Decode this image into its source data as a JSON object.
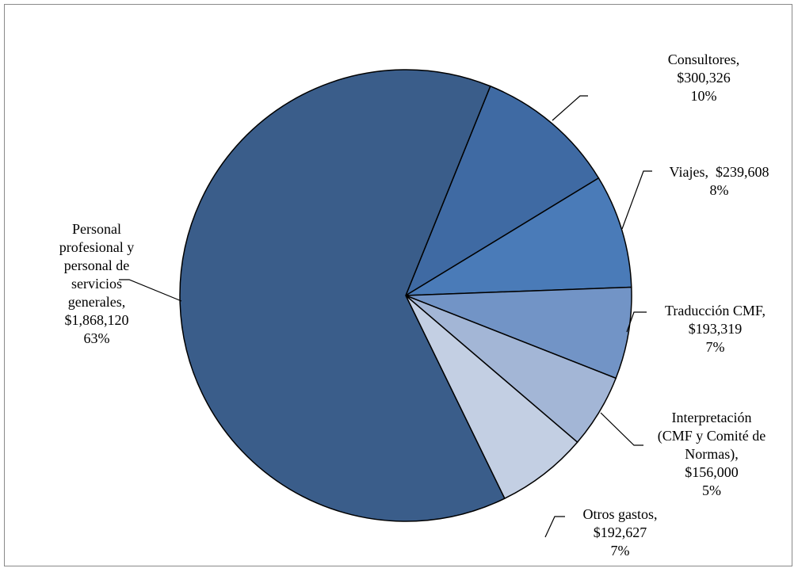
{
  "chart_data": {
    "type": "pie",
    "slices": [
      {
        "label_lines": [
          "Consultores,",
          "$300,326",
          "10%"
        ],
        "value": 300326,
        "percent": "10%",
        "color": "#3f6aa3"
      },
      {
        "label_lines": [
          "Viajes,  $239,608",
          "8%"
        ],
        "value": 239608,
        "percent": "8%",
        "color": "#4a7bb8"
      },
      {
        "label_lines": [
          "Traducción CMF,",
          "$193,319",
          "7%"
        ],
        "value": 193319,
        "percent": "7%",
        "color": "#7294c6"
      },
      {
        "label_lines": [
          "Interpretación",
          "(CMF y Comité de",
          "Normas),",
          "$156,000",
          "5%"
        ],
        "value": 156000,
        "percent": "5%",
        "color": "#a3b6d6"
      },
      {
        "label_lines": [
          "Otros gastos,",
          "$192,627",
          "7%"
        ],
        "value": 192627,
        "percent": "7%",
        "color": "#c3cfe3"
      },
      {
        "label_lines": [
          "Personal",
          "profesional y",
          "personal de",
          "servicios",
          "generales,",
          "$1,868,120",
          "63%"
        ],
        "value": 1868120,
        "percent": "63%",
        "color": "#3a5d8a"
      }
    ]
  }
}
